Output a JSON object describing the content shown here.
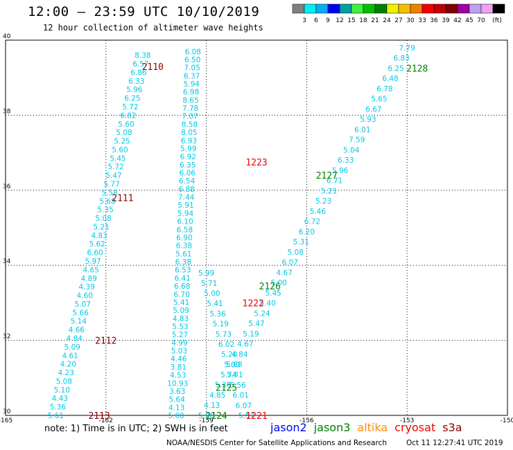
{
  "title": "12:00 – 23:59 UTC 10/10/2019",
  "subtitle": "12 hour collection of altimeter wave heights",
  "colorbar": {
    "colors": [
      "#808080",
      "#00f0f0",
      "#00b0f0",
      "#0000f0",
      "#00a0a0",
      "#40f040",
      "#00c000",
      "#008000",
      "#f0f000",
      "#f0c000",
      "#f08000",
      "#f00000",
      "#c00000",
      "#800000",
      "#a000a0",
      "#c0a0f0",
      "#f0a0f0",
      "#000000"
    ],
    "labels": [
      "3",
      "6",
      "9",
      "12",
      "15",
      "18",
      "21",
      "24",
      "27",
      "30",
      "33",
      "36",
      "39",
      "42",
      "45",
      "70",
      "(ft)"
    ]
  },
  "chart_data": {
    "type": "scatter",
    "title": "12:00 – 23:59 UTC 10/10/2019",
    "xlim": [
      -165,
      -150
    ],
    "ylim": [
      30,
      40
    ],
    "xticks": [
      "-165",
      "-162",
      "-159",
      "-156",
      "-153",
      "-150"
    ],
    "yticks": [
      "30",
      "32",
      "34",
      "36",
      "38",
      "40"
    ],
    "grid": true,
    "tracks": [
      {
        "pass": "2113",
        "sat": "s3a",
        "color": "#8b0000",
        "label_at": [
          -162.2,
          30.0
        ],
        "start": [
          -163.5,
          30.0
        ],
        "end": [
          -160.9,
          39.6
        ],
        "values": [
          5.61,
          5.36,
          4.43,
          5.1,
          5.08,
          4.23,
          4.2,
          4.61,
          5.09,
          4.84,
          4.66,
          5.14,
          5.66,
          5.07,
          4.6,
          4.39,
          4.89,
          4.65,
          5.97,
          6.6,
          5.62,
          4.83,
          5.21,
          5.08,
          5.35,
          5.68,
          5.58,
          5.77,
          5.47,
          5.72,
          5.45,
          5.6,
          5.25,
          5.08,
          5.6,
          6.82,
          5.72,
          6.25,
          5.96,
          6.33,
          6.86,
          6.57,
          8.38
        ]
      },
      {
        "pass": "2124",
        "sat": "jason3",
        "color": "#008000",
        "label_at": [
          -158.7,
          30.0
        ],
        "start": [
          -159.9,
          30.0
        ],
        "end": [
          -159.4,
          39.7
        ],
        "values": [
          5.0,
          4.13,
          5.64,
          3.63,
          10.93,
          4.53,
          3.81,
          4.46,
          5.03,
          4.99,
          5.27,
          5.53,
          4.83,
          5.09,
          5.41,
          6.7,
          6.68,
          6.41,
          6.53,
          6.38,
          5.61,
          6.38,
          6.9,
          6.58,
          6.1,
          5.94,
          5.91,
          7.44,
          6.88,
          6.54,
          6.06,
          6.35,
          6.92,
          5.99,
          6.93,
          8.05,
          8.58,
          7.07,
          7.78,
          8.65,
          6.98,
          5.94,
          6.37,
          7.05,
          6.5,
          6.08
        ]
      },
      {
        "pass": "1221",
        "sat": "cryosat",
        "color": "#ee0000",
        "label_at": [
          -157.5,
          30.0
        ],
        "start": [
          -157.8,
          30.0
        ],
        "end": [
          -159.0,
          33.8
        ],
        "values": [
          5.57,
          6.07,
          6.01,
          5.56,
          5.81,
          5.0,
          5.2,
          6.02,
          5.73,
          5.19,
          5.36,
          5.41,
          5.0,
          5.71,
          5.99
        ]
      },
      {
        "pass": "2125",
        "sat": "jason3",
        "color": "#008000",
        "label_at": [
          -158.4,
          30.75
        ],
        "start": [
          -159.0,
          30.0
        ],
        "end": [
          -153.0,
          39.8
        ],
        "values": [
          5.0,
          4.13,
          4.85,
          5.38,
          5.74,
          5.68,
          4.84,
          4.67,
          5.19,
          5.47,
          5.24,
          5.4,
          5.45,
          5.0,
          4.67,
          6.07,
          5.08,
          5.31,
          6.2,
          6.72,
          5.46,
          5.23,
          5.21,
          6.71,
          5.96,
          6.33,
          5.04,
          7.59,
          6.01,
          5.93,
          6.67,
          5.65,
          6.78,
          6.48,
          6.25,
          6.83,
          7.79
        ]
      },
      {
        "pass": "2110",
        "sat": "s3a",
        "color": "#8b0000",
        "label_at": [
          -160.6,
          39.3
        ]
      },
      {
        "pass": "2111",
        "sat": "s3a",
        "color": "#8b0000",
        "label_at": [
          -161.5,
          35.8
        ]
      },
      {
        "pass": "2112",
        "sat": "s3a",
        "color": "#8b0000",
        "label_at": [
          -162.0,
          32.0
        ]
      },
      {
        "pass": "1222",
        "sat": "cryosat",
        "color": "#ee0000",
        "label_at": [
          -157.6,
          33.0
        ]
      },
      {
        "pass": "1223",
        "sat": "cryosat",
        "color": "#ee0000",
        "label_at": [
          -157.5,
          36.75
        ]
      },
      {
        "pass": "2126",
        "sat": "jason3",
        "color": "#008000",
        "label_at": [
          -157.1,
          33.45
        ]
      },
      {
        "pass": "2127",
        "sat": "jason3",
        "color": "#008000",
        "label_at": [
          -155.4,
          36.4
        ]
      },
      {
        "pass": "2128",
        "sat": "jason3",
        "color": "#008000",
        "label_at": [
          -152.7,
          39.25
        ]
      }
    ]
  },
  "note": "note: 1) Time is in UTC; 2) SWH is in feet",
  "legend": [
    {
      "name": "jason2",
      "color": "#0000ee"
    },
    {
      "name": "jason3",
      "color": "#008000"
    },
    {
      "name": "altika",
      "color": "#ff8c00"
    },
    {
      "name": "cryosat",
      "color": "#ee0000"
    },
    {
      "name": "s3a",
      "color": "#8b0000"
    }
  ],
  "credit_left": "NOAA/NESDIS Center for Satellite Applications and Research",
  "credit_right": "Oct 11 12:27:41 UTC 2019"
}
